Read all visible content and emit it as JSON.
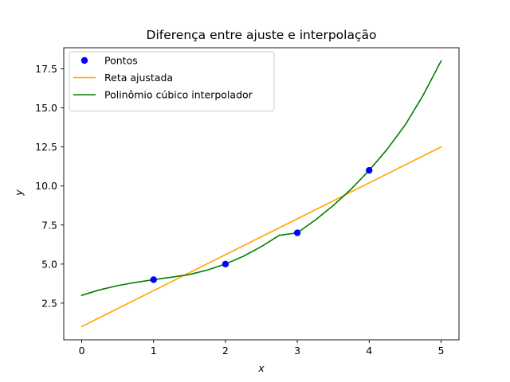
{
  "chart_data": {
    "type": "line",
    "title": "Diferença entre ajuste e interpolação",
    "xlabel": "x",
    "ylabel": "y",
    "xlim": [
      -0.25,
      5.25
    ],
    "ylim": [
      0.15,
      18.85
    ],
    "xticks": [
      0,
      1,
      2,
      3,
      4,
      5
    ],
    "xtick_labels": [
      "0",
      "1",
      "2",
      "3",
      "4",
      "5"
    ],
    "yticks": [
      2.5,
      5.0,
      7.5,
      10.0,
      12.5,
      15.0,
      17.5
    ],
    "ytick_labels": [
      "2.5",
      "5.0",
      "7.5",
      "10.0",
      "12.5",
      "15.0",
      "17.5"
    ],
    "grid": false,
    "legend_position": "top-left",
    "series": [
      {
        "name": "Pontos",
        "kind": "scatter",
        "color": "#0000ff",
        "x": [
          1,
          2,
          3,
          4
        ],
        "y": [
          4,
          5,
          7,
          11
        ]
      },
      {
        "name": "Reta ajustada",
        "kind": "line",
        "color": "#ffa500",
        "x": [
          0,
          5
        ],
        "y": [
          1.0,
          12.5
        ]
      },
      {
        "name": "Polinômio cúbico interpolador",
        "kind": "line",
        "color": "#008000",
        "x": [
          0,
          0.25,
          0.5,
          0.75,
          1,
          1.25,
          1.5,
          1.75,
          2,
          2.25,
          2.5,
          2.75,
          3,
          3.25,
          3.5,
          3.75,
          4,
          4.25,
          4.5,
          4.75,
          5
        ],
        "y": [
          3.0,
          3.35,
          3.62,
          3.83,
          4.0,
          4.16,
          4.33,
          4.62,
          5.0,
          5.5,
          6.12,
          6.84,
          7.0,
          7.82,
          8.75,
          9.8,
          11.0,
          12.35,
          13.9,
          15.8,
          18.0
        ]
      }
    ]
  }
}
